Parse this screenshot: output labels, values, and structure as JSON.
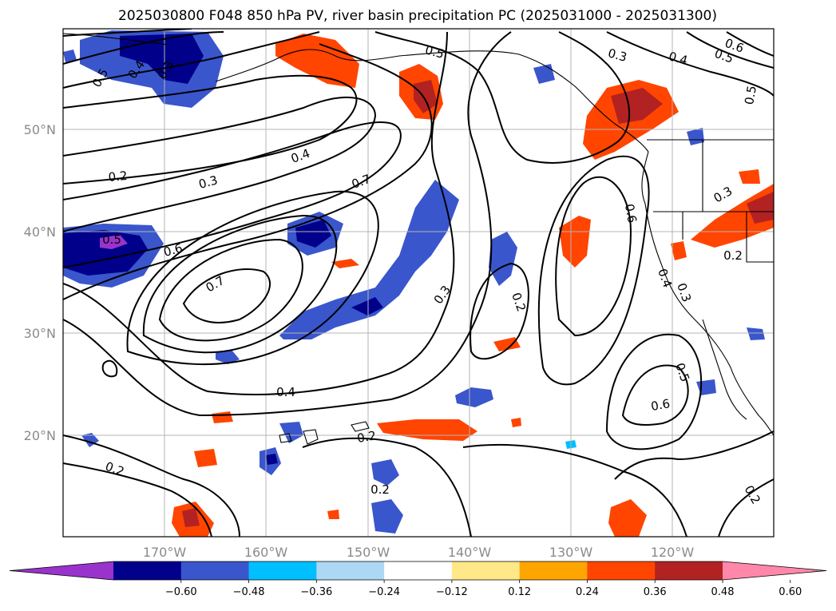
{
  "title": "2025030800 F048 850 hPa PV, river basin precipitation PC (2025031000 - 2025031300)",
  "chart_data": {
    "type": "contour-map",
    "title": "2025030800 F048 850 hPa PV, river basin precipitation PC (2025031000 - 2025031300)",
    "x_ticks": [
      "170°W",
      "160°W",
      "150°W",
      "140°W",
      "130°W",
      "120°W"
    ],
    "y_ticks": [
      "20°N",
      "30°N",
      "40°N",
      "50°N"
    ],
    "contour_labels": [
      "0.5",
      "0.4",
      "0.3",
      "0.5",
      "0.3",
      "0.4",
      "0.5",
      "0.6",
      "0.5",
      "0.4",
      "0.3",
      "0.2",
      "0.7",
      "0.6",
      "0.5",
      "0.7",
      "0.3",
      "0.2",
      "0.4",
      "0.2",
      "0.6",
      "0.5",
      "0.2",
      "0.3",
      "0.4",
      "0.2",
      "0.2",
      "0.6",
      "0.3",
      "0.2"
    ],
    "colorbar": {
      "ticks": [
        "−0.60",
        "−0.48",
        "−0.36",
        "−0.24",
        "−0.12",
        "0.12",
        "0.24",
        "0.36",
        "0.48",
        "0.60"
      ],
      "colors": [
        "#9933cc",
        "#00008b",
        "#3a56cc",
        "#00bfff",
        "#add8f5",
        "#ffffff",
        "#ffe888",
        "#ffa500",
        "#ff4500",
        "#b22222",
        "#ff88aa"
      ],
      "extend": "both"
    }
  }
}
